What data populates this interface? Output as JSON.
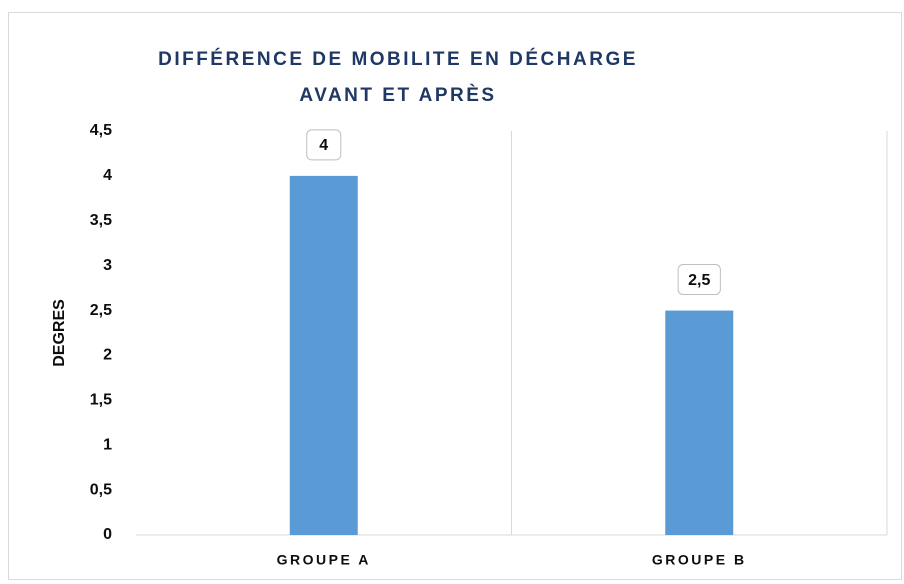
{
  "chart_data": {
    "type": "bar",
    "title": [
      "DIFFÉRENCE DE MOBILITE EN DÉCHARGE",
      "AVANT ET APRÈS"
    ],
    "ylabel": "DEGRES",
    "categories": [
      "GROUPE A",
      "GROUPE B"
    ],
    "values": [
      4,
      2.5
    ],
    "value_labels": [
      "4",
      "2,5"
    ],
    "color": "#5b9bd5",
    "ylim": [
      0,
      4.5
    ],
    "yticks": [
      0,
      {
        "value": 0.5,
        "label": "0,5"
      },
      1,
      {
        "value": 1.5,
        "label": "1,5"
      },
      2,
      {
        "value": 2.5,
        "label": "2,5"
      },
      3,
      {
        "value": 3.5,
        "label": "3,5"
      },
      4,
      {
        "value": 4.5,
        "label": "4,5"
      }
    ],
    "grid": false
  }
}
